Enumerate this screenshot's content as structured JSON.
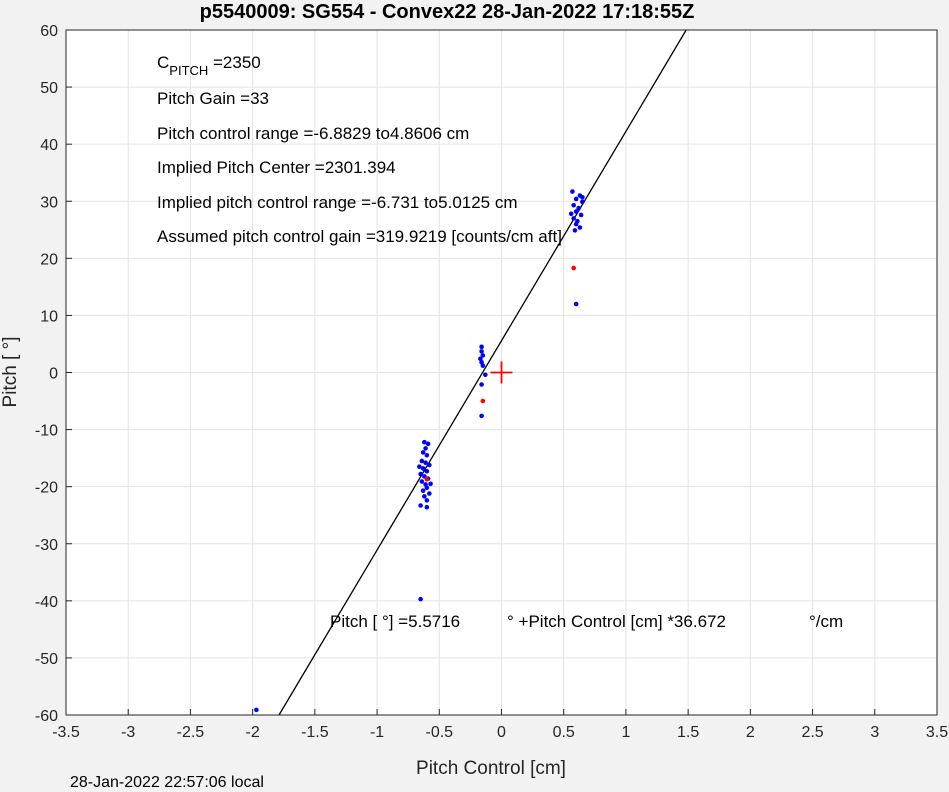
{
  "chart_data": {
    "type": "scatter",
    "title": "p5540009: SG554 - Convex22 28-Jan-2022 17:18:55Z",
    "xlabel": "Pitch Control [cm]",
    "ylabel": "Pitch [  °]",
    "xlim": [
      -3.5,
      3.5
    ],
    "ylim": [
      -60,
      60
    ],
    "xticks": [
      "-3.5",
      "-3",
      "-2.5",
      "-2",
      "-1.5",
      "-1",
      "-0.5",
      "0",
      "0.5",
      "1",
      "1.5",
      "2",
      "2.5",
      "3",
      "3.5"
    ],
    "yticks": [
      "60",
      "50",
      "40",
      "30",
      "20",
      "10",
      "0",
      "-10",
      "-20",
      "-30",
      "-40",
      "-50",
      "-60"
    ],
    "grid": true,
    "colors": {
      "points": "#0000ff",
      "outliers": "#ff0000",
      "fit_line": "#000000",
      "center_marker": "#ff0000"
    },
    "annotations": {
      "c_pitch_main": "C",
      "c_pitch_sub": "PITCH",
      "c_pitch_value": " =2350",
      "pitch_gain": "Pitch Gain =33",
      "control_range": "Pitch control range =-6.8829 to4.8606 cm",
      "implied_center": "Implied Pitch Center =2301.394",
      "implied_range": "Implied pitch control range =-6.731 to5.0125 cm",
      "assumed_gain": "Assumed pitch control gain =319.9219 [counts/cm aft]",
      "fit_eq_1": "Pitch [  °] =5.5716",
      "fit_eq_2": "° +Pitch Control [cm] *36.672",
      "fit_eq_3": "°/cm"
    },
    "fit_line": {
      "intercept": 5.5716,
      "slope": 36.672
    },
    "center_marker": {
      "x": 0,
      "y": 0
    },
    "series": [
      {
        "values": [
          [
            -0.62,
            -12.2
          ],
          [
            -0.59,
            -12.5
          ],
          [
            -0.63,
            -14
          ],
          [
            -0.6,
            -14.5
          ],
          [
            -0.64,
            -15.5
          ],
          [
            -0.61,
            -15.8
          ],
          [
            -0.58,
            -16.2
          ],
          [
            -0.63,
            -16.8
          ],
          [
            -0.6,
            -17.3
          ],
          [
            -0.65,
            -17.8
          ],
          [
            -0.62,
            -18.2
          ],
          [
            -0.59,
            -18.6
          ],
          [
            -0.64,
            -19.1
          ],
          [
            -0.61,
            -19.6
          ],
          [
            -0.6,
            -20.2
          ],
          [
            -0.63,
            -20.7
          ],
          [
            -0.58,
            -21.2
          ],
          [
            -0.62,
            -21.7
          ],
          [
            -0.6,
            -22.4
          ],
          [
            -0.65,
            -23.3
          ],
          [
            -0.6,
            -23.6
          ],
          [
            -0.61,
            -13.3
          ],
          [
            -0.66,
            -16.5
          ],
          [
            -0.57,
            -19.5
          ],
          [
            -0.65,
            -39.7
          ],
          [
            -1.97,
            -59.1
          ],
          [
            -0.16,
            4.5
          ],
          [
            -0.16,
            3.7
          ],
          [
            -0.15,
            3
          ],
          [
            -0.17,
            2.4
          ],
          [
            -0.16,
            1.8
          ],
          [
            -0.15,
            1.2
          ],
          [
            -0.16,
            -2.1
          ],
          [
            -0.13,
            -0.4
          ],
          [
            -0.16,
            -7.6
          ],
          [
            0.57,
            31.7
          ],
          [
            0.63,
            31
          ],
          [
            0.6,
            30.4
          ],
          [
            0.65,
            29.9
          ],
          [
            0.58,
            29.3
          ],
          [
            0.62,
            28.8
          ],
          [
            0.6,
            28.2
          ],
          [
            0.64,
            27.6
          ],
          [
            0.58,
            27
          ],
          [
            0.61,
            26.5
          ],
          [
            0.6,
            26
          ],
          [
            0.63,
            25.4
          ],
          [
            0.59,
            24.9
          ],
          [
            0.65,
            30.7
          ],
          [
            0.56,
            27.8
          ],
          [
            0.6,
            12
          ]
        ]
      },
      {
        "values": [
          [
            -0.6,
            -18.7
          ],
          [
            -0.15,
            -5
          ],
          [
            0.58,
            18.3
          ]
        ]
      }
    ]
  },
  "footer": {
    "timestamp": "28-Jan-2022 22:57:06 local"
  }
}
